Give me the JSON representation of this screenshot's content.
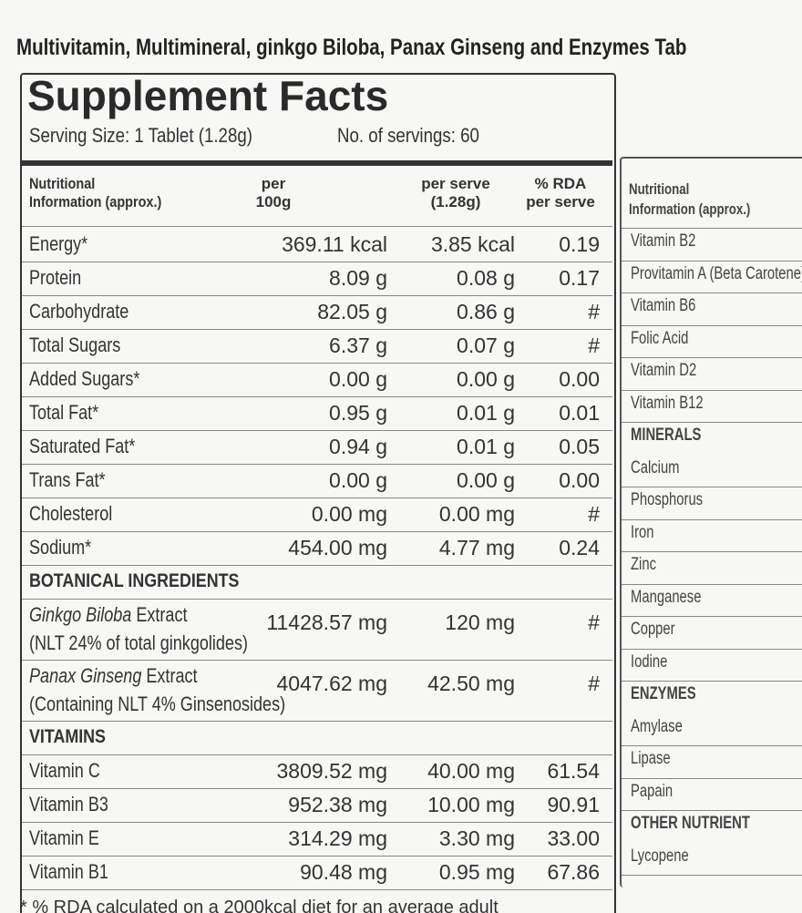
{
  "header": {
    "subtitle": "Multivitamin, Multimineral, ginkgo Biloba, Panax Ginseng and Enzymes Tab",
    "title": "Supplement Facts",
    "serving_size": "Serving Size: 1 Tablet (1.28g)",
    "servings": "No. of servings: 60"
  },
  "table": {
    "headers": [
      [
        "Nutritional",
        "Information (approx.)"
      ],
      [
        "per",
        "100g"
      ],
      [
        "per serve",
        "(1.28g)"
      ],
      [
        "% RDA",
        "per serve"
      ]
    ],
    "rows": [
      {
        "name": "Energy*",
        "per_100g": "369.11 kcal",
        "per_serve": "3.85 kcal",
        "rda": "0.19"
      },
      {
        "name": "Protein",
        "per_100g": "8.09 g",
        "per_serve": "0.08 g",
        "rda": "0.17"
      },
      {
        "name": "Carbohydrate",
        "per_100g": "82.05 g",
        "per_serve": "0.86 g",
        "rda": "#"
      },
      {
        "name": "Total Sugars",
        "per_100g": "6.37 g",
        "per_serve": "0.07 g",
        "rda": "#"
      },
      {
        "name": "Added Sugars*",
        "per_100g": "0.00 g",
        "per_serve": "0.00 g",
        "rda": "0.00"
      },
      {
        "name": "Total Fat*",
        "per_100g": "0.95 g",
        "per_serve": "0.01 g",
        "rda": "0.01"
      },
      {
        "name": "Saturated Fat*",
        "per_100g": "0.94 g",
        "per_serve": "0.01 g",
        "rda": "0.05"
      },
      {
        "name": "Trans Fat*",
        "per_100g": "0.00 g",
        "per_serve": "0.00 g",
        "rda": "0.00"
      },
      {
        "name": "Cholesterol",
        "per_100g": "0.00 mg",
        "per_serve": "0.00 mg",
        "rda": "#"
      },
      {
        "name": "Sodium*",
        "per_100g": "454.00 mg",
        "per_serve": "4.77 mg",
        "rda": "0.24"
      },
      {
        "section": "BOTANICAL INGREDIENTS"
      },
      {
        "name_italic": "Ginkgo Biloba",
        "name": "Extract",
        "per_100g": "11428.57 mg",
        "per_serve": "120 mg",
        "rda": "#",
        "note": "(NLT 24% of total ginkgolides)"
      },
      {
        "name_italic": "Panax Ginseng",
        "name": "Extract",
        "per_100g": "4047.62 mg",
        "per_serve": "42.50 mg",
        "rda": "#",
        "note": "(Containing NLT 4% Ginsenosides)"
      },
      {
        "section": "VITAMINS"
      },
      {
        "name": "Vitamin C",
        "per_100g": "3809.52 mg",
        "per_serve": "40.00 mg",
        "rda": "61.54"
      },
      {
        "name": "Vitamin B3",
        "per_100g": "952.38 mg",
        "per_serve": "10.00 mg",
        "rda": "90.91"
      },
      {
        "name": "Vitamin E",
        "per_100g": "314.29 mg",
        "per_serve": "3.30 mg",
        "rda": "33.00"
      },
      {
        "name": "Vitamin B1",
        "per_100g": "90.48 mg",
        "per_serve": "0.95 mg",
        "rda": "67.86"
      }
    ],
    "footnote": "* % RDA calculated on a 2000kcal diet for an average adult"
  },
  "side_table": {
    "header": [
      "Nutritional",
      "Information (approx.)"
    ],
    "rows": [
      {
        "name": "Vitamin B2"
      },
      {
        "name": "Provitamin A (Beta Carotene)"
      },
      {
        "name": "Vitamin B6"
      },
      {
        "name": "Folic Acid"
      },
      {
        "name": "Vitamin D2"
      },
      {
        "name": "Vitamin B12"
      },
      {
        "section": "MINERALS"
      },
      {
        "name": "Calcium"
      },
      {
        "name": "Phosphorus"
      },
      {
        "name": "Iron"
      },
      {
        "name": "Zinc"
      },
      {
        "name": "Manganese"
      },
      {
        "name": "Copper"
      },
      {
        "name": "Iodine"
      },
      {
        "section": "ENZYMES"
      },
      {
        "name": "Amylase"
      },
      {
        "name": "Lipase"
      },
      {
        "name": "Papain"
      },
      {
        "section": "OTHER NUTRIENT"
      },
      {
        "name": "Lycopene"
      }
    ]
  }
}
